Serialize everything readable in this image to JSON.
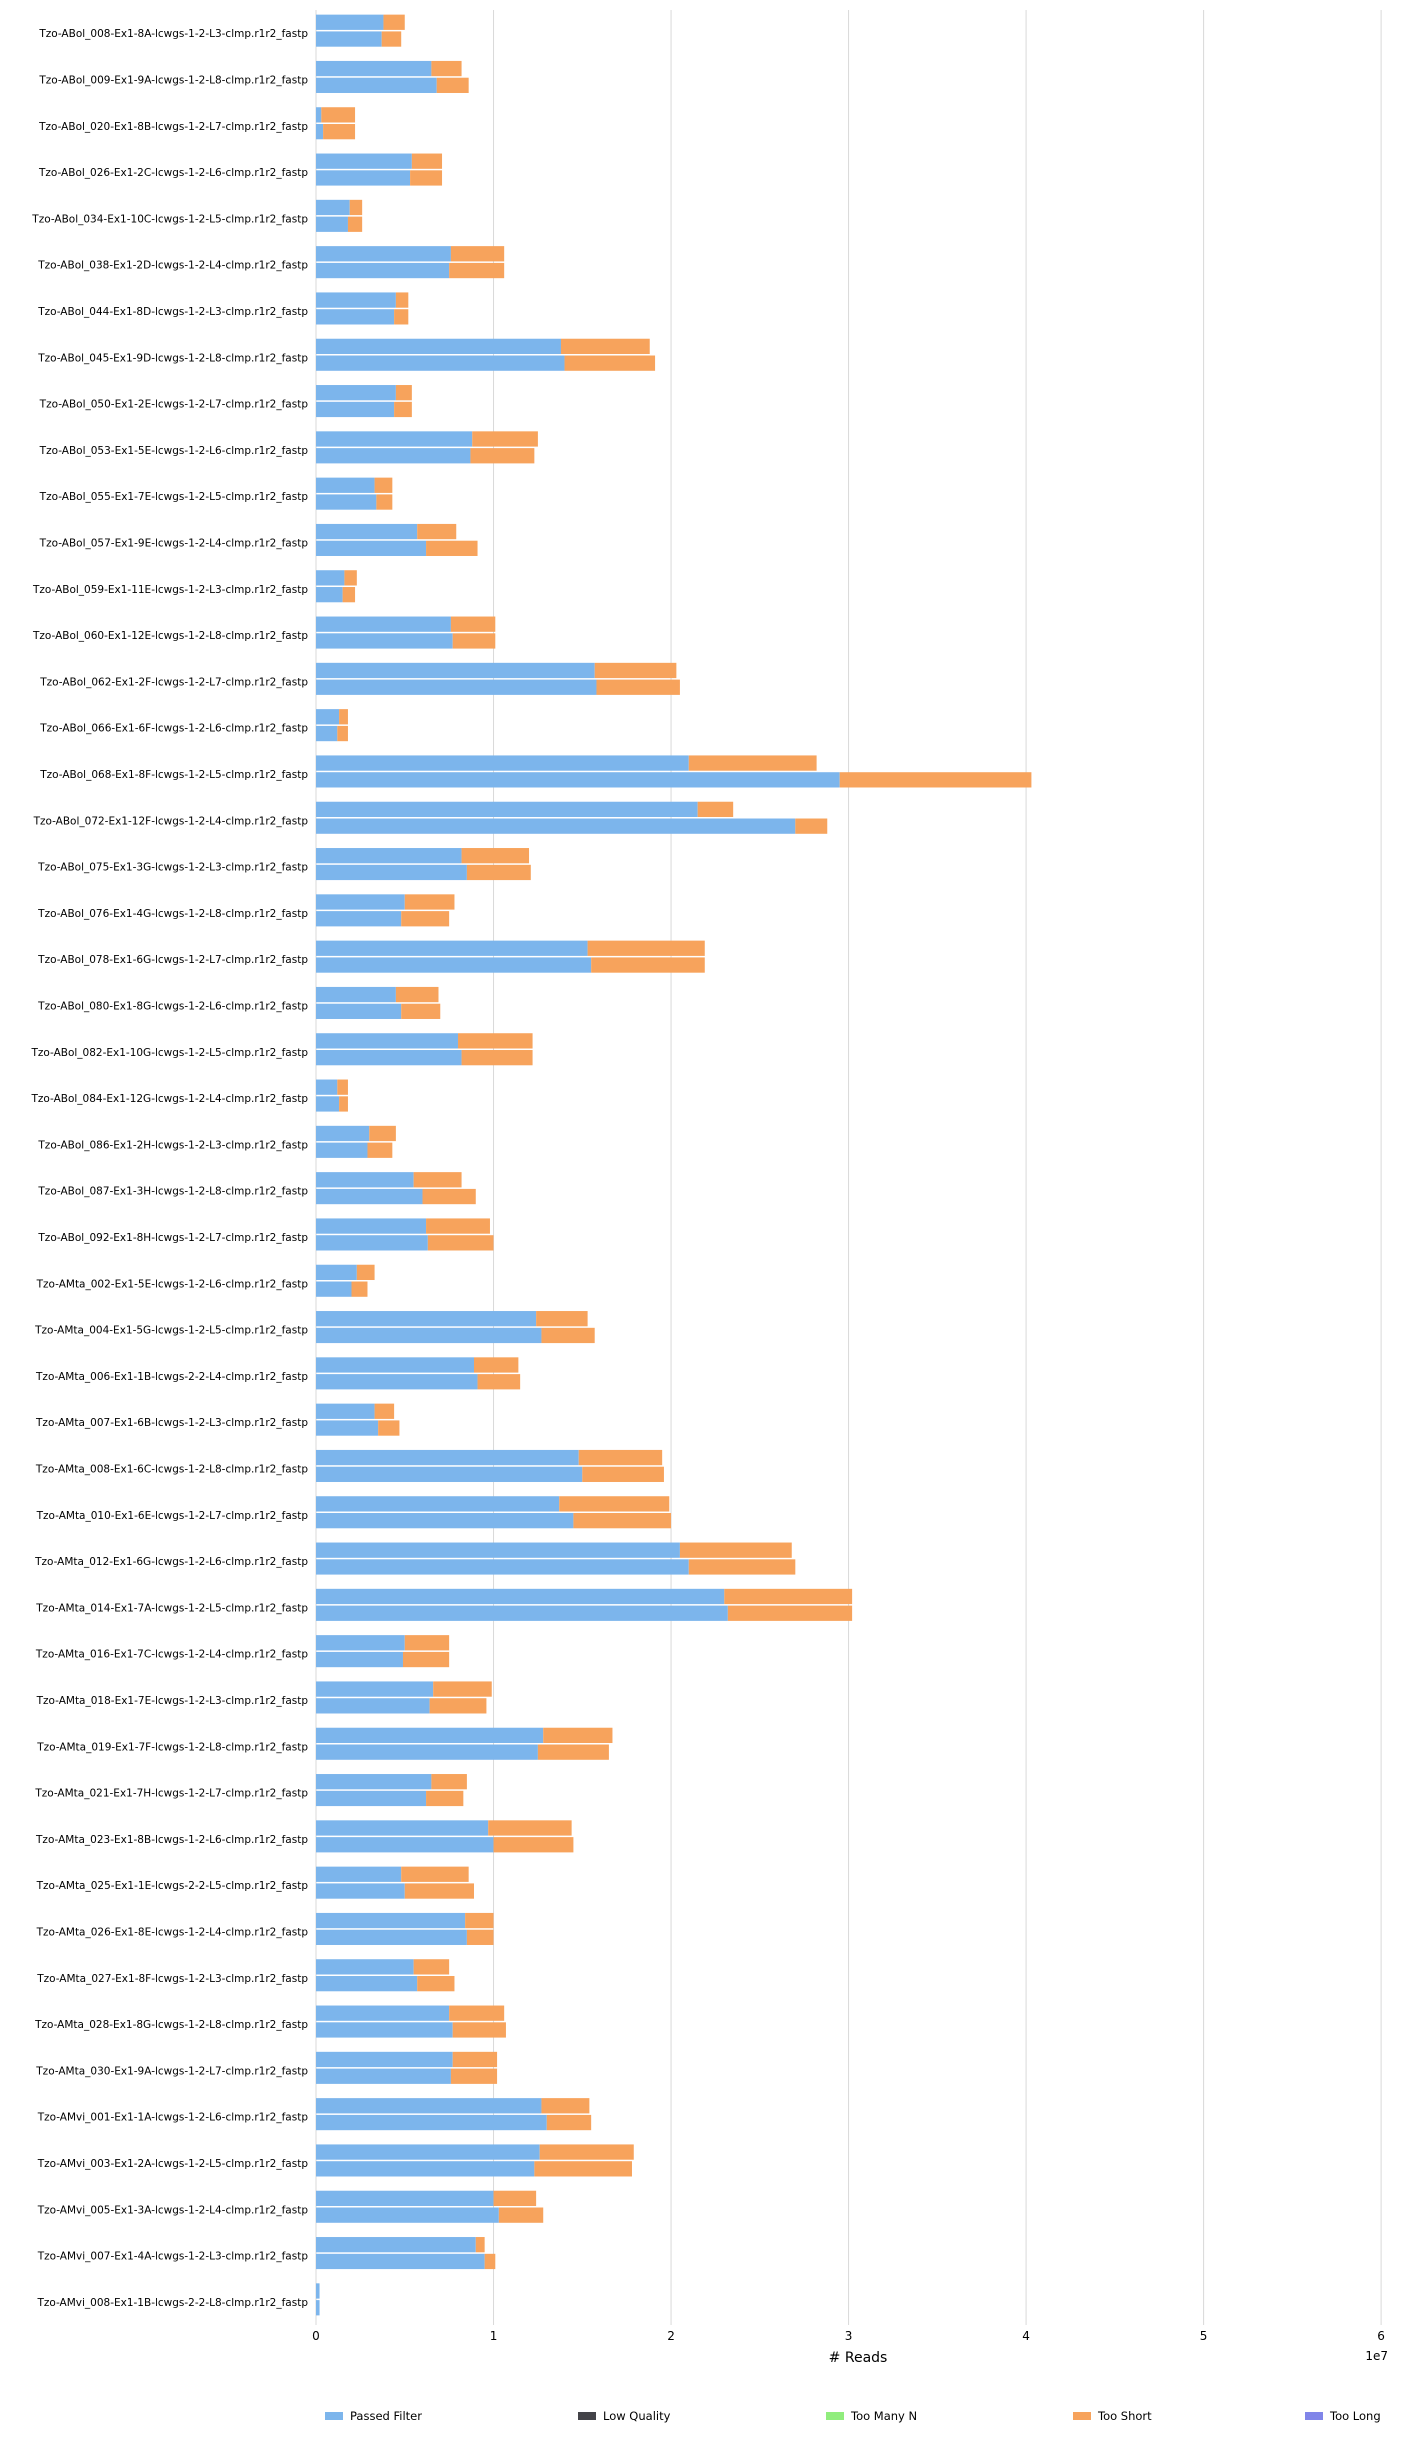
{
  "chart_data": {
    "type": "bar",
    "orientation": "horizontal",
    "stacked": true,
    "xlabel": "# Reads",
    "x_offset_label": "1e7",
    "xlim": [
      0,
      6.05
    ],
    "xticks": [
      "0",
      "1",
      "2",
      "3",
      "4",
      "5",
      "6"
    ],
    "grid": true,
    "legend_position": "bottom",
    "colors": {
      "Passed Filter": "#7cb5ec",
      "Low Quality": "#434348",
      "Too Many N": "#90ed7d",
      "Too Short": "#f7a35c",
      "Too Long": "#8085e9"
    },
    "legend": [
      "Passed Filter",
      "Low Quality",
      "Too Many N",
      "Too Short",
      "Too Long"
    ],
    "groups": [
      {
        "label": "Tzo-ABol_008-Ex1-8A-lcwgs-1-2-L3-clmp.r1r2_fastp",
        "passed": [
          0.38,
          0.37
        ],
        "short": [
          0.12,
          0.11
        ]
      },
      {
        "label": "Tzo-ABol_009-Ex1-9A-lcwgs-1-2-L8-clmp.r1r2_fastp",
        "passed": [
          0.65,
          0.68
        ],
        "short": [
          0.17,
          0.18
        ]
      },
      {
        "label": "Tzo-ABol_020-Ex1-8B-lcwgs-1-2-L7-clmp.r1r2_fastp",
        "passed": [
          0.03,
          0.04
        ],
        "short": [
          0.19,
          0.18
        ]
      },
      {
        "label": "Tzo-ABol_026-Ex1-2C-lcwgs-1-2-L6-clmp.r1r2_fastp",
        "passed": [
          0.54,
          0.53
        ],
        "short": [
          0.17,
          0.18
        ]
      },
      {
        "label": "Tzo-ABol_034-Ex1-10C-lcwgs-1-2-L5-clmp.r1r2_fastp",
        "passed": [
          0.19,
          0.18
        ],
        "short": [
          0.07,
          0.08
        ]
      },
      {
        "label": "Tzo-ABol_038-Ex1-2D-lcwgs-1-2-L4-clmp.r1r2_fastp",
        "passed": [
          0.76,
          0.75
        ],
        "short": [
          0.3,
          0.31
        ]
      },
      {
        "label": "Tzo-ABol_044-Ex1-8D-lcwgs-1-2-L3-clmp.r1r2_fastp",
        "passed": [
          0.45,
          0.44
        ],
        "short": [
          0.07,
          0.08
        ]
      },
      {
        "label": "Tzo-ABol_045-Ex1-9D-lcwgs-1-2-L8-clmp.r1r2_fastp",
        "passed": [
          1.38,
          1.4
        ],
        "short": [
          0.5,
          0.51
        ]
      },
      {
        "label": "Tzo-ABol_050-Ex1-2E-lcwgs-1-2-L7-clmp.r1r2_fastp",
        "passed": [
          0.45,
          0.44
        ],
        "short": [
          0.09,
          0.1
        ]
      },
      {
        "label": "Tzo-ABol_053-Ex1-5E-lcwgs-1-2-L6-clmp.r1r2_fastp",
        "passed": [
          0.88,
          0.87
        ],
        "short": [
          0.37,
          0.36
        ]
      },
      {
        "label": "Tzo-ABol_055-Ex1-7E-lcwgs-1-2-L5-clmp.r1r2_fastp",
        "passed": [
          0.33,
          0.34
        ],
        "short": [
          0.1,
          0.09
        ]
      },
      {
        "label": "Tzo-ABol_057-Ex1-9E-lcwgs-1-2-L4-clmp.r1r2_fastp",
        "passed": [
          0.57,
          0.62
        ],
        "short": [
          0.22,
          0.29
        ]
      },
      {
        "label": "Tzo-ABol_059-Ex1-11E-lcwgs-1-2-L3-clmp.r1r2_fastp",
        "passed": [
          0.16,
          0.15
        ],
        "short": [
          0.07,
          0.07
        ]
      },
      {
        "label": "Tzo-ABol_060-Ex1-12E-lcwgs-1-2-L8-clmp.r1r2_fastp",
        "passed": [
          0.76,
          0.77
        ],
        "short": [
          0.25,
          0.24
        ]
      },
      {
        "label": "Tzo-ABol_062-Ex1-2F-lcwgs-1-2-L7-clmp.r1r2_fastp",
        "passed": [
          1.57,
          1.58
        ],
        "short": [
          0.46,
          0.47
        ]
      },
      {
        "label": "Tzo-ABol_066-Ex1-6F-lcwgs-1-2-L6-clmp.r1r2_fastp",
        "passed": [
          0.13,
          0.12
        ],
        "short": [
          0.05,
          0.06
        ]
      },
      {
        "label": "Tzo-ABol_068-Ex1-8F-lcwgs-1-2-L5-clmp.r1r2_fastp",
        "passed": [
          2.1,
          2.95
        ],
        "short": [
          0.72,
          1.08
        ]
      },
      {
        "label": "Tzo-ABol_072-Ex1-12F-lcwgs-1-2-L4-clmp.r1r2_fastp",
        "passed": [
          2.15,
          2.7
        ],
        "short": [
          0.2,
          0.18
        ]
      },
      {
        "label": "Tzo-ABol_075-Ex1-3G-lcwgs-1-2-L3-clmp.r1r2_fastp",
        "passed": [
          0.82,
          0.85
        ],
        "short": [
          0.38,
          0.36
        ]
      },
      {
        "label": "Tzo-ABol_076-Ex1-4G-lcwgs-1-2-L8-clmp.r1r2_fastp",
        "passed": [
          0.5,
          0.48
        ],
        "short": [
          0.28,
          0.27
        ]
      },
      {
        "label": "Tzo-ABol_078-Ex1-6G-lcwgs-1-2-L7-clmp.r1r2_fastp",
        "passed": [
          1.53,
          1.55
        ],
        "short": [
          0.66,
          0.64
        ]
      },
      {
        "label": "Tzo-ABol_080-Ex1-8G-lcwgs-1-2-L6-clmp.r1r2_fastp",
        "passed": [
          0.45,
          0.48
        ],
        "short": [
          0.24,
          0.22
        ]
      },
      {
        "label": "Tzo-ABol_082-Ex1-10G-lcwgs-1-2-L5-clmp.r1r2_fastp",
        "passed": [
          0.8,
          0.82
        ],
        "short": [
          0.42,
          0.4
        ]
      },
      {
        "label": "Tzo-ABol_084-Ex1-12G-lcwgs-1-2-L4-clmp.r1r2_fastp",
        "passed": [
          0.12,
          0.13
        ],
        "short": [
          0.06,
          0.05
        ]
      },
      {
        "label": "Tzo-ABol_086-Ex1-2H-lcwgs-1-2-L3-clmp.r1r2_fastp",
        "passed": [
          0.3,
          0.29
        ],
        "short": [
          0.15,
          0.14
        ]
      },
      {
        "label": "Tzo-ABol_087-Ex1-3H-lcwgs-1-2-L8-clmp.r1r2_fastp",
        "passed": [
          0.55,
          0.6
        ],
        "short": [
          0.27,
          0.3
        ]
      },
      {
        "label": "Tzo-ABol_092-Ex1-8H-lcwgs-1-2-L7-clmp.r1r2_fastp",
        "passed": [
          0.62,
          0.63
        ],
        "short": [
          0.36,
          0.37
        ]
      },
      {
        "label": "Tzo-AMta_002-Ex1-5E-lcwgs-1-2-L6-clmp.r1r2_fastp",
        "passed": [
          0.23,
          0.2
        ],
        "short": [
          0.1,
          0.09
        ]
      },
      {
        "label": "Tzo-AMta_004-Ex1-5G-lcwgs-1-2-L5-clmp.r1r2_fastp",
        "passed": [
          1.24,
          1.27
        ],
        "short": [
          0.29,
          0.3
        ]
      },
      {
        "label": "Tzo-AMta_006-Ex1-1B-lcwgs-2-2-L4-clmp.r1r2_fastp",
        "passed": [
          0.89,
          0.91
        ],
        "short": [
          0.25,
          0.24
        ]
      },
      {
        "label": "Tzo-AMta_007-Ex1-6B-lcwgs-1-2-L3-clmp.r1r2_fastp",
        "passed": [
          0.33,
          0.35
        ],
        "short": [
          0.11,
          0.12
        ]
      },
      {
        "label": "Tzo-AMta_008-Ex1-6C-lcwgs-1-2-L8-clmp.r1r2_fastp",
        "passed": [
          1.48,
          1.5
        ],
        "short": [
          0.47,
          0.46
        ]
      },
      {
        "label": "Tzo-AMta_010-Ex1-6E-lcwgs-1-2-L7-clmp.r1r2_fastp",
        "passed": [
          1.37,
          1.45
        ],
        "short": [
          0.62,
          0.55
        ]
      },
      {
        "label": "Tzo-AMta_012-Ex1-6G-lcwgs-1-2-L6-clmp.r1r2_fastp",
        "passed": [
          2.05,
          2.1
        ],
        "short": [
          0.63,
          0.6
        ]
      },
      {
        "label": "Tzo-AMta_014-Ex1-7A-lcwgs-1-2-L5-clmp.r1r2_fastp",
        "passed": [
          2.3,
          2.32
        ],
        "short": [
          0.72,
          0.7
        ]
      },
      {
        "label": "Tzo-AMta_016-Ex1-7C-lcwgs-1-2-L4-clmp.r1r2_fastp",
        "passed": [
          0.5,
          0.49
        ],
        "short": [
          0.25,
          0.26
        ]
      },
      {
        "label": "Tzo-AMta_018-Ex1-7E-lcwgs-1-2-L3-clmp.r1r2_fastp",
        "passed": [
          0.66,
          0.64
        ],
        "short": [
          0.33,
          0.32
        ]
      },
      {
        "label": "Tzo-AMta_019-Ex1-7F-lcwgs-1-2-L8-clmp.r1r2_fastp",
        "passed": [
          1.28,
          1.25
        ],
        "short": [
          0.39,
          0.4
        ]
      },
      {
        "label": "Tzo-AMta_021-Ex1-7H-lcwgs-1-2-L7-clmp.r1r2_fastp",
        "passed": [
          0.65,
          0.62
        ],
        "short": [
          0.2,
          0.21
        ]
      },
      {
        "label": "Tzo-AMta_023-Ex1-8B-lcwgs-1-2-L6-clmp.r1r2_fastp",
        "passed": [
          0.97,
          1.0
        ],
        "short": [
          0.47,
          0.45
        ]
      },
      {
        "label": "Tzo-AMta_025-Ex1-1E-lcwgs-2-2-L5-clmp.r1r2_fastp",
        "passed": [
          0.48,
          0.5
        ],
        "short": [
          0.38,
          0.39
        ]
      },
      {
        "label": "Tzo-AMta_026-Ex1-8E-lcwgs-1-2-L4-clmp.r1r2_fastp",
        "passed": [
          0.84,
          0.85
        ],
        "short": [
          0.16,
          0.15
        ]
      },
      {
        "label": "Tzo-AMta_027-Ex1-8F-lcwgs-1-2-L3-clmp.r1r2_fastp",
        "passed": [
          0.55,
          0.57
        ],
        "short": [
          0.2,
          0.21
        ]
      },
      {
        "label": "Tzo-AMta_028-Ex1-8G-lcwgs-1-2-L8-clmp.r1r2_fastp",
        "passed": [
          0.75,
          0.77
        ],
        "short": [
          0.31,
          0.3
        ]
      },
      {
        "label": "Tzo-AMta_030-Ex1-9A-lcwgs-1-2-L7-clmp.r1r2_fastp",
        "passed": [
          0.77,
          0.76
        ],
        "short": [
          0.25,
          0.26
        ]
      },
      {
        "label": "Tzo-AMvi_001-Ex1-1A-lcwgs-1-2-L6-clmp.r1r2_fastp",
        "passed": [
          1.27,
          1.3
        ],
        "short": [
          0.27,
          0.25
        ]
      },
      {
        "label": "Tzo-AMvi_003-Ex1-2A-lcwgs-1-2-L5-clmp.r1r2_fastp",
        "passed": [
          1.26,
          1.23
        ],
        "short": [
          0.53,
          0.55
        ]
      },
      {
        "label": "Tzo-AMvi_005-Ex1-3A-lcwgs-1-2-L4-clmp.r1r2_fastp",
        "passed": [
          1.0,
          1.03
        ],
        "short": [
          0.24,
          0.25
        ]
      },
      {
        "label": "Tzo-AMvi_007-Ex1-4A-lcwgs-1-2-L3-clmp.r1r2_fastp",
        "passed": [
          0.9,
          0.95
        ],
        "short": [
          0.05,
          0.06
        ]
      },
      {
        "label": "Tzo-AMvi_008-Ex1-1B-lcwgs-2-2-L8-clmp.r1r2_fastp",
        "passed": [
          0.02,
          0.02
        ],
        "short": [
          0.0,
          0.0
        ]
      }
    ]
  }
}
